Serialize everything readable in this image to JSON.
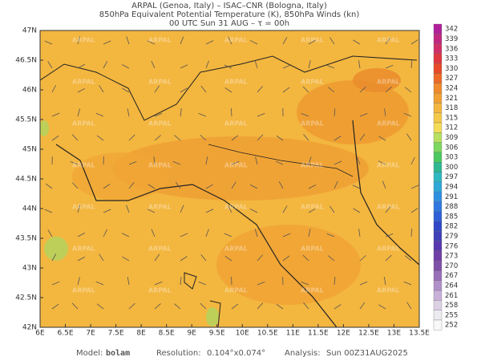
{
  "header": {
    "line1": "ARPAL (Genoa, Italy)  –  ISAC–CNR (Bologna, Italy)",
    "line2": "850hPa Equivalent Potential Temperature (K), 850hPa Winds (kn)",
    "line3": "00 UTC Sun 31 AUG  –  τ = 00h"
  },
  "map": {
    "lat_ticks": [
      "47N",
      "46.5N",
      "46N",
      "45.5N",
      "45N",
      "44.5N",
      "44N",
      "43.5N",
      "43N",
      "42.5N",
      "42N"
    ],
    "lon_ticks": [
      "6E",
      "6.5E",
      "7E",
      "7.5E",
      "8E",
      "8.5E",
      "9E",
      "9.5E",
      "10E",
      "10.5E",
      "11E",
      "11.5E",
      "12E",
      "12.5E",
      "13E",
      "13.5E"
    ],
    "watermark": "ARPAL"
  },
  "colorbar": {
    "labels": [
      342,
      339,
      336,
      333,
      330,
      327,
      324,
      321,
      318,
      315,
      312,
      309,
      306,
      303,
      300,
      297,
      294,
      291,
      288,
      285,
      282,
      279,
      276,
      273,
      270,
      267,
      264,
      261,
      258,
      255,
      252
    ]
  },
  "footer": {
    "model_label": "Model:",
    "model": "bolam",
    "resolution_label": "Resolution:",
    "resolution": "0.104°x0.074°",
    "analysis_label": "Analysis:",
    "analysis": "Sun 00Z31AUG2025"
  }
}
